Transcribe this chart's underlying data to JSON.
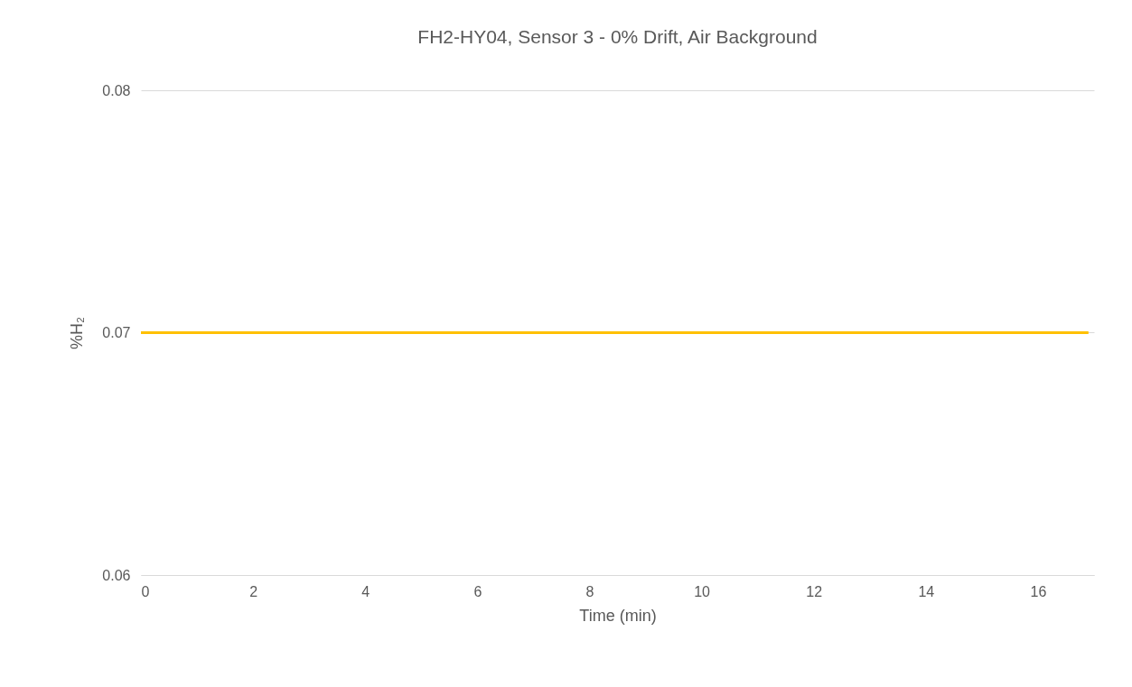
{
  "chart_data": {
    "type": "line",
    "title": "FH2-HY04, Sensor 3 - 0% Drift, Air Background",
    "xlabel": "Time (min)",
    "ylabel": "%H₂",
    "x": [
      0,
      16.9
    ],
    "series": [
      {
        "color": "#ffc000",
        "values": [
          0.07,
          0.07
        ]
      }
    ],
    "xlim": [
      0,
      17
    ],
    "xticks": [
      0,
      2,
      4,
      6,
      8,
      10,
      12,
      14,
      16
    ],
    "ylim": [
      0.06,
      0.08
    ],
    "yticks": [
      0.06,
      0.07,
      0.08
    ],
    "grid": "y"
  }
}
